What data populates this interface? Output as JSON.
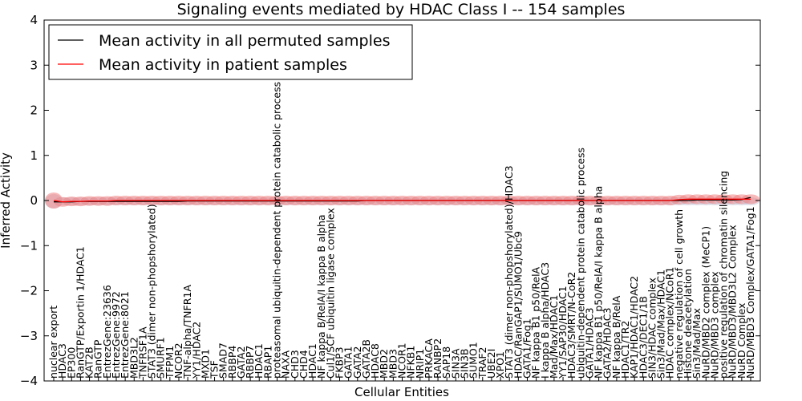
{
  "chart_data": {
    "type": "line",
    "title": "Signaling events mediated by HDAC Class I -- 154 samples",
    "xlabel": "Cellular Entities",
    "ylabel": "Inferred Activity",
    "ylim": [
      -4,
      4
    ],
    "yticks": [
      4,
      3,
      2,
      1,
      0,
      -1,
      -2,
      -3,
      -4
    ],
    "ytick_labels": [
      "4",
      "3",
      "2",
      "1",
      "0",
      "−1",
      "−2",
      "−3",
      "−4"
    ],
    "legend_position": "top-left",
    "categories": [
      "nuclear export",
      "HDAC3",
      "EP300",
      "RanGTP/Exportin 1/HDAC1",
      "KAT2B",
      "RanGTP",
      "EntrezGene:23636",
      "EntrezGene:9972",
      "EntrezGene:8021",
      "MBD3L2",
      "TNFRSF1A",
      "STAT3 (dimer non-phopshorylated)",
      "SMURF1",
      "TFPM1",
      "NCOR2",
      "TNF-alpha/TNFR1A",
      "YY1/HDAC2",
      "MXD1",
      "TSF",
      "SMAD7",
      "RBBP4",
      "GATA2",
      "RBBP7",
      "HDAC1",
      "RBAP1",
      "proteasomal ubiquitin-dependent protein catabolic process",
      "NAXA",
      "CHD3",
      "CHD4",
      "HDAC1",
      "NF kappa B/RelA/I kappa B alpha",
      "Cul1/SCF ubiquitin ligase complex",
      "FKBP3",
      "GATA1",
      "GATA2",
      "GATA2B",
      "HDAC8",
      "MBD2",
      "MBD3",
      "NCOR1",
      "NFKB1",
      "NRIP1",
      "PRKACA",
      "RANBP2",
      "SAP18",
      "SIN3A",
      "SIN3B",
      "SUMO1",
      "TRAF2",
      "UBE2I",
      "XPO1",
      "STAT3 (dimer non-phopshorylated)/HDAC3",
      "HDAC/RanGAP1/SUMO1/Ubc9",
      "GATA1/Fog1",
      "NF kappa B1 p50/RelA",
      "I kappa B alpha/HDAC3",
      "Mad/Max/HDAC1",
      "YY1/SAP30/HDAC1",
      "HDAC3/SMRT/N-CoR2",
      "ubiquitin-dependent protein catabolic process",
      "GATA1/HDAC3",
      "NF kappa B1 p50/RelA/I kappa B alpha",
      "GATA2/HDAC3",
      "NF kappa B/RelA",
      "HDAC1/TR2",
      "KAP1/HDAC1/HDAC2",
      "HDAC3/DEC1/1B",
      "SIN3/HDAC complex",
      "Sin3/Mad/Max/HDAC1",
      "HDAC complex/NCoR1",
      "negative regulation of cell growth",
      "Histone deacetylation",
      "Sin3/Mad/Max",
      "NuRD/MBD2 complex (MeCP1)",
      "NuRD/MBD3 complex",
      "positive regulation of chromatin silencing",
      "NuRD/MBD3/MBD3L2 Complex",
      "NuRD Complex",
      "NuRD/MBD3 Complex/GATA1/Fog1"
    ],
    "x": [
      0,
      1,
      2,
      3,
      4,
      5,
      6,
      7,
      8,
      9,
      10,
      11,
      12,
      13,
      14,
      15,
      16,
      17,
      18,
      19,
      20,
      21,
      22,
      23,
      24,
      25,
      26,
      27,
      28,
      29,
      30,
      31,
      32,
      33,
      34,
      35,
      36,
      37,
      38,
      39,
      40,
      41,
      42,
      43,
      44,
      45,
      46,
      47,
      48,
      49,
      50,
      51,
      52,
      53,
      54,
      55,
      56,
      57,
      58,
      59,
      60,
      61,
      62,
      63,
      64,
      65,
      66,
      67,
      68,
      69,
      70,
      71,
      72,
      73,
      74,
      75,
      76,
      77,
      78
    ],
    "series": [
      {
        "name": "Mean activity in all permuted samples",
        "color": "#000000",
        "values": [
          -0.03,
          -0.03,
          -0.03,
          -0.02,
          -0.02,
          -0.02,
          -0.02,
          -0.02,
          -0.02,
          -0.02,
          -0.02,
          -0.02,
          -0.02,
          -0.02,
          -0.02,
          -0.01,
          -0.01,
          -0.01,
          -0.01,
          -0.01,
          -0.01,
          -0.01,
          -0.01,
          -0.01,
          -0.01,
          -0.01,
          -0.01,
          -0.01,
          -0.01,
          -0.01,
          -0.01,
          -0.01,
          -0.01,
          -0.01,
          -0.01,
          0.0,
          0.0,
          0.0,
          0.0,
          0.0,
          0.0,
          0.0,
          0.0,
          0.0,
          0.0,
          0.0,
          0.0,
          0.0,
          0.0,
          0.0,
          0.0,
          0.0,
          0.0,
          0.0,
          0.0,
          0.0,
          0.0,
          0.0,
          0.0,
          0.0,
          0.0,
          0.0,
          0.0,
          0.0,
          0.0,
          0.0,
          0.0,
          0.0,
          0.0,
          0.0,
          0.0,
          0.0,
          0.01,
          0.01,
          0.01,
          0.01,
          0.01,
          0.02,
          0.07
        ]
      },
      {
        "name": "Mean activity in patient samples",
        "color": "#ff0000",
        "values": [
          0.0,
          -0.03,
          -0.02,
          -0.02,
          -0.01,
          -0.01,
          -0.01,
          0.0,
          0.0,
          0.0,
          0.0,
          0.0,
          0.0,
          0.0,
          0.0,
          0.0,
          0.0,
          0.0,
          0.0,
          0.0,
          0.0,
          0.0,
          0.0,
          0.0,
          0.0,
          0.0,
          0.0,
          0.0,
          0.0,
          0.0,
          0.0,
          0.0,
          0.0,
          0.0,
          0.0,
          0.0,
          0.0,
          0.0,
          0.0,
          0.0,
          0.0,
          0.0,
          0.0,
          0.0,
          0.0,
          0.0,
          0.0,
          0.0,
          0.0,
          0.0,
          0.0,
          0.0,
          0.0,
          0.0,
          0.0,
          0.0,
          0.0,
          0.0,
          0.0,
          0.0,
          0.0,
          0.0,
          0.0,
          0.0,
          0.0,
          0.0,
          0.0,
          0.0,
          0.0,
          0.0,
          0.02,
          0.03,
          0.03,
          0.03,
          0.03,
          0.03,
          0.03,
          0.03,
          0.03
        ]
      }
    ],
    "band_color": "#f08080",
    "grey_band_color": "#c8c8d8"
  }
}
